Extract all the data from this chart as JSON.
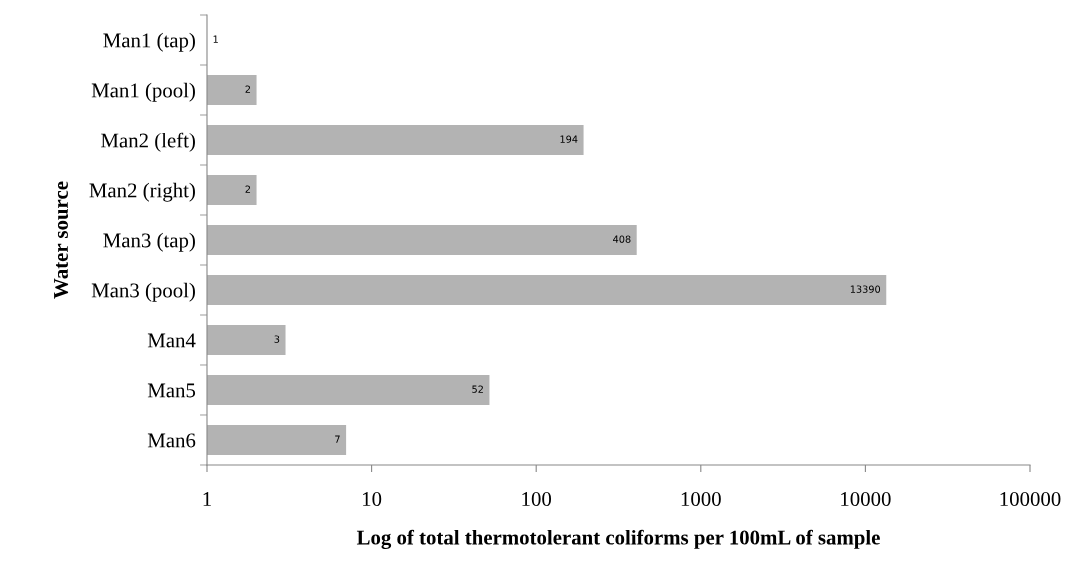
{
  "chart_data": {
    "type": "bar",
    "orientation": "horizontal",
    "log": "x",
    "xlabel": "Log of total thermotolerant coliforms per 100mL of sample",
    "ylabel": "Water source",
    "categories": [
      "Man1 (tap)",
      "Man1 (pool)",
      "Man2 (left)",
      "Man2 (right)",
      "Man3 (tap)",
      "Man3 (pool)",
      "Man4",
      "Man5",
      "Man6"
    ],
    "values": [
      1,
      2,
      194,
      2,
      408,
      13390,
      3,
      52,
      7
    ],
    "color": "#b3b3b3",
    "data_labels": true,
    "grid": false,
    "legend": false,
    "xlim": [
      1,
      100000
    ],
    "xticks": [
      1,
      10,
      100,
      1000,
      10000,
      100000
    ]
  }
}
